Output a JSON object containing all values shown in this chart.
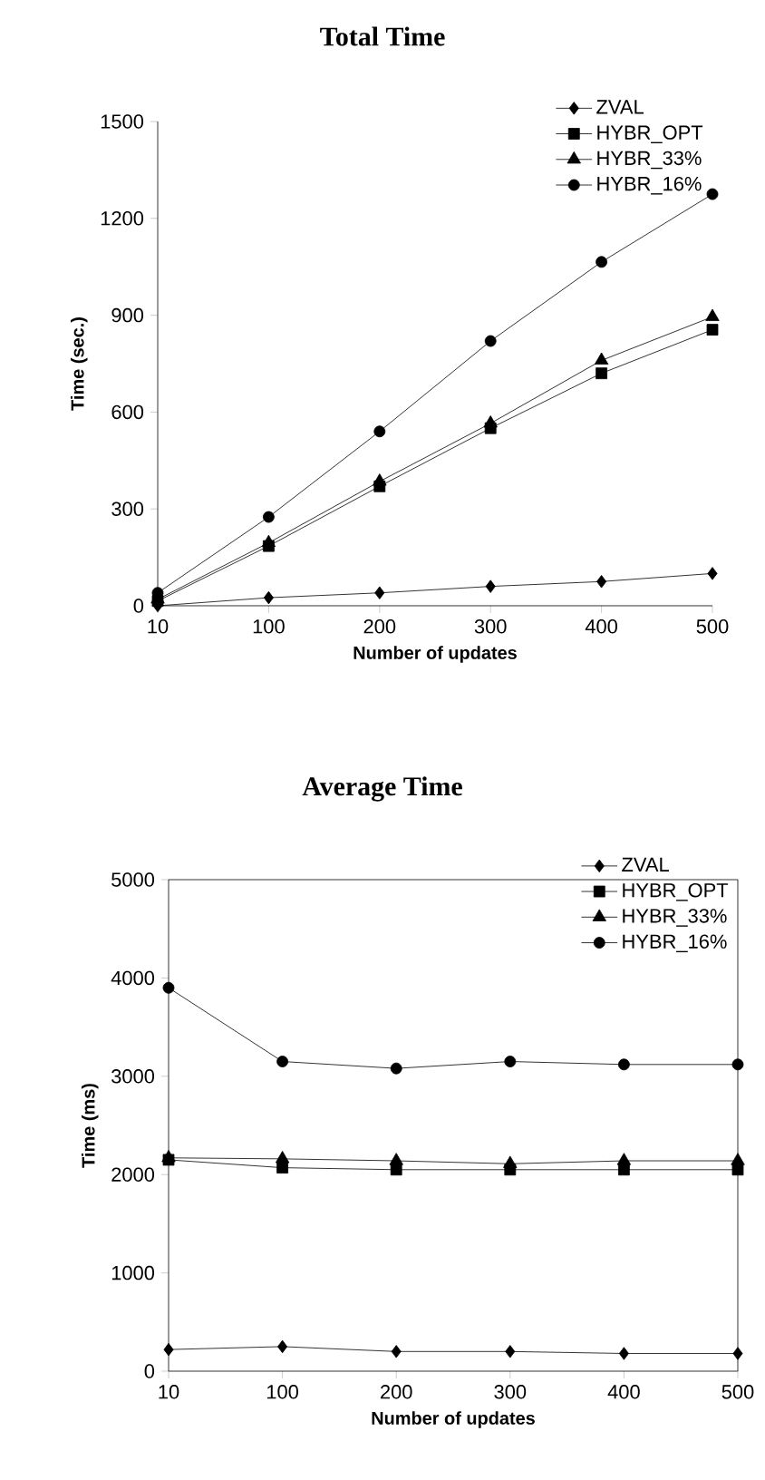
{
  "chart_data": [
    {
      "type": "line",
      "title": "Total Time",
      "xlabel": "Number of updates",
      "ylabel": "Time (sec.)",
      "categories": [
        "10",
        "100",
        "200",
        "300",
        "400",
        "500"
      ],
      "ylim": [
        0,
        1500
      ],
      "yticks": [
        0,
        300,
        600,
        900,
        1200,
        1500
      ],
      "legend": "top right",
      "series": [
        {
          "name": "ZVAL",
          "color": "#000000",
          "marker": "diamond",
          "values": [
            0,
            25,
            40,
            60,
            75,
            100
          ]
        },
        {
          "name": "HYBR_OPT",
          "color": "#000000",
          "marker": "square",
          "values": [
            15,
            185,
            370,
            550,
            720,
            855
          ]
        },
        {
          "name": "HYBR_33%",
          "color": "#000000",
          "marker": "triangle",
          "values": [
            20,
            195,
            385,
            565,
            760,
            895
          ]
        },
        {
          "name": "HYBR_16%",
          "color": "#000000",
          "marker": "circle",
          "values": [
            40,
            275,
            540,
            820,
            1065,
            1275
          ]
        }
      ]
    },
    {
      "type": "line",
      "title": "Average Time",
      "xlabel": "Number of updates",
      "ylabel": "Time (ms)",
      "categories": [
        "10",
        "100",
        "200",
        "300",
        "400",
        "500"
      ],
      "ylim": [
        0,
        5000
      ],
      "yticks": [
        0,
        1000,
        2000,
        3000,
        4000,
        5000
      ],
      "legend": "top right",
      "series": [
        {
          "name": "ZVAL",
          "color": "#000000",
          "marker": "diamond",
          "values": [
            220,
            250,
            200,
            200,
            180,
            180
          ]
        },
        {
          "name": "HYBR_OPT",
          "color": "#000000",
          "marker": "square",
          "values": [
            2150,
            2070,
            2050,
            2050,
            2050,
            2050
          ]
        },
        {
          "name": "HYBR_33%",
          "color": "#000000",
          "marker": "triangle",
          "values": [
            2170,
            2160,
            2140,
            2110,
            2140,
            2140
          ]
        },
        {
          "name": "HYBR_16%",
          "color": "#000000",
          "marker": "circle",
          "values": [
            3900,
            3150,
            3080,
            3150,
            3120,
            3120
          ]
        }
      ]
    }
  ]
}
